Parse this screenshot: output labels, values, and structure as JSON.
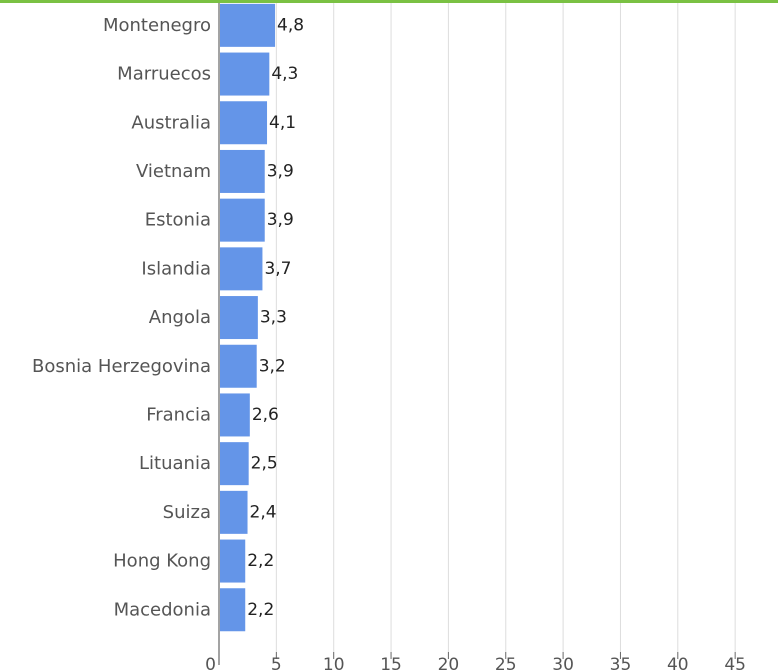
{
  "chart_data": {
    "type": "bar",
    "orientation": "horizontal",
    "categories": [
      "Montenegro",
      "Marruecos",
      "Australia",
      "Vietnam",
      "Estonia",
      "Islandia",
      "Angola",
      "Bosnia Herzegovina",
      "Francia",
      "Lituania",
      "Suiza",
      "Hong Kong",
      "Macedonia"
    ],
    "values": [
      4.8,
      4.3,
      4.1,
      3.9,
      3.9,
      3.7,
      3.3,
      3.2,
      2.6,
      2.5,
      2.4,
      2.2,
      2.2
    ],
    "value_labels": [
      "4,8",
      "4,3",
      "4,1",
      "3,9",
      "3,9",
      "3,7",
      "3,3",
      "3,2",
      "2,6",
      "2,5",
      "2,4",
      "2,2",
      "2,2"
    ],
    "xticks": [
      0,
      5,
      10,
      15,
      20,
      25,
      30,
      35,
      40,
      45
    ],
    "xtick_labels": [
      "0",
      "5",
      "10",
      "15",
      "20",
      "25",
      "30",
      "35",
      "40",
      "45"
    ],
    "xlim": [
      0,
      48
    ],
    "grid": true,
    "title": "",
    "xlabel": "",
    "ylabel": "",
    "colors": {
      "bar": "#6495e8",
      "top_rule": "#7ac143",
      "grid": "#dddddd",
      "axis": "#666666"
    }
  }
}
